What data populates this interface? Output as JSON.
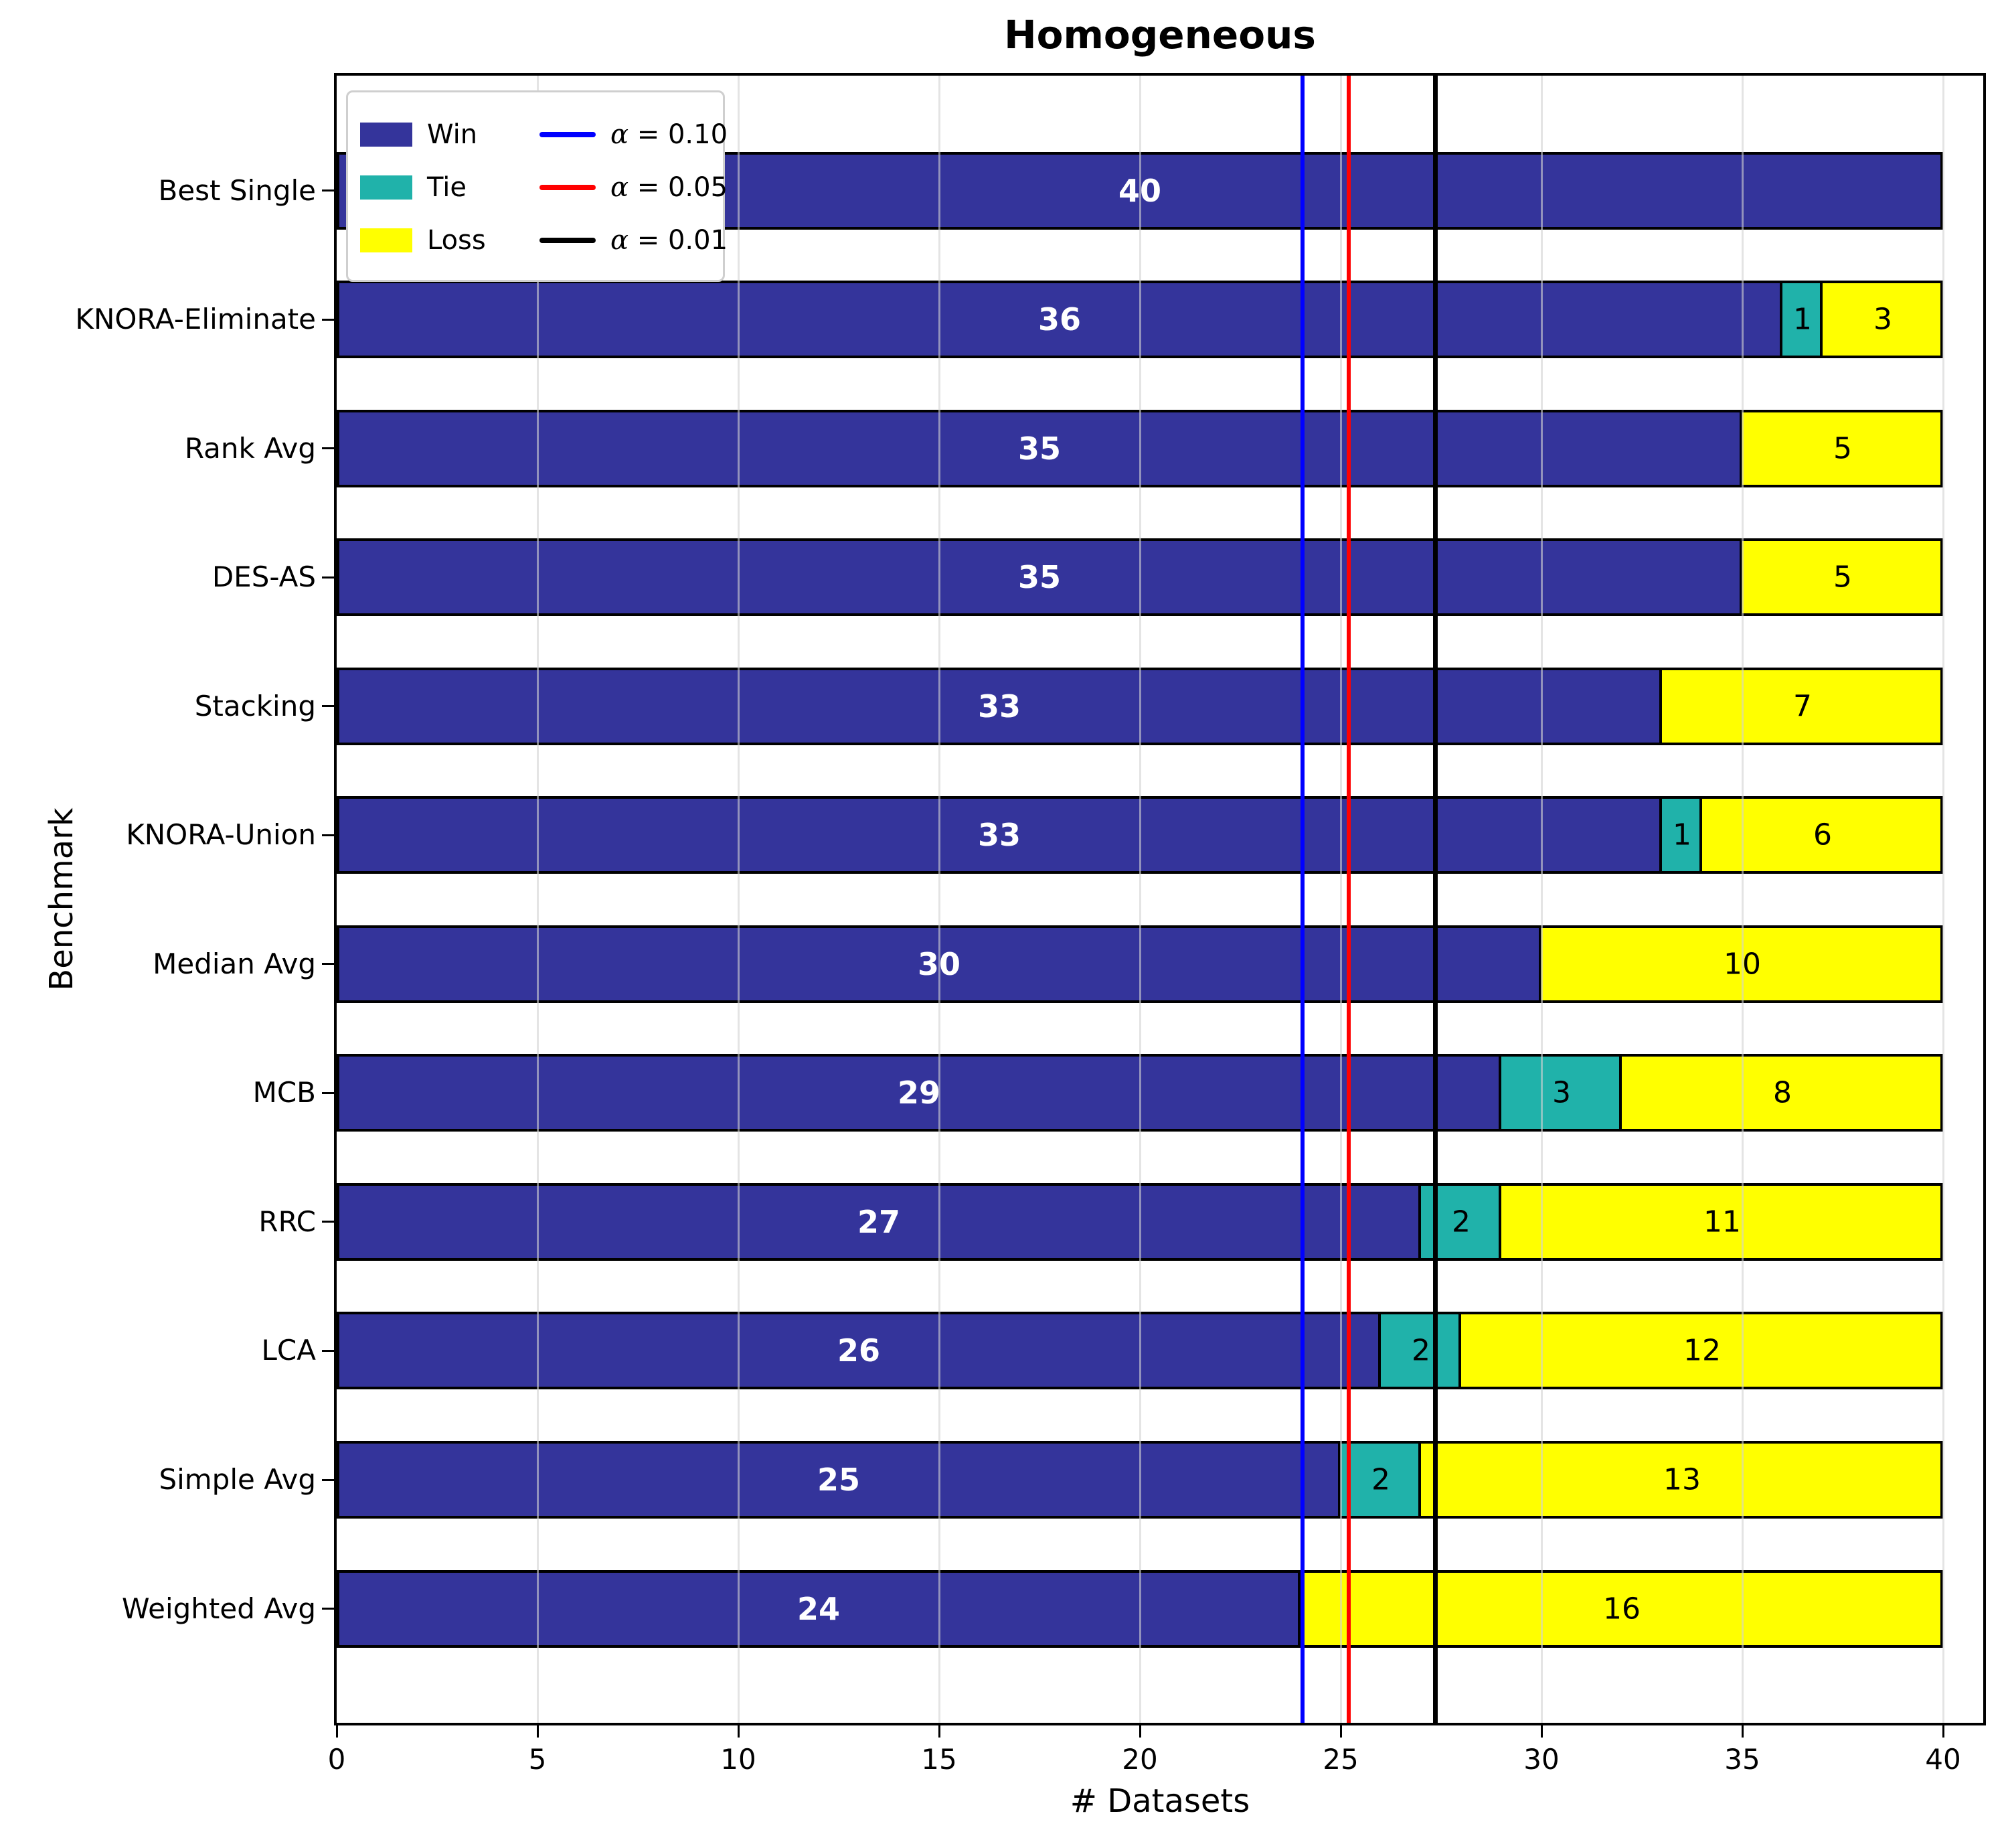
{
  "title": "Homogeneous",
  "axes": {
    "xlabel": "# Datasets",
    "ylabel": "Benchmark"
  },
  "chart_data": {
    "type": "bar",
    "orientation": "horizontal_stacked",
    "title": "Homogeneous",
    "xlabel": "# Datasets",
    "ylabel": "Benchmark",
    "xlim": [
      0,
      41
    ],
    "xticks": [
      0,
      5,
      10,
      15,
      20,
      25,
      30,
      35,
      40
    ],
    "grid": "vertical major gridlines, light gray",
    "legend_position": "upper left",
    "categories": [
      "Best Single",
      "KNORA-Eliminate",
      "Rank Avg",
      "DES-AS",
      "Stacking",
      "KNORA-Union",
      "Median Avg",
      "MCB",
      "RRC",
      "LCA",
      "Simple Avg",
      "Weighted Avg"
    ],
    "series": [
      {
        "name": "Win",
        "color": "#34349B",
        "label_color": "#FFFFFF",
        "values": [
          40,
          36,
          35,
          35,
          33,
          33,
          30,
          29,
          27,
          26,
          25,
          24
        ]
      },
      {
        "name": "Tie",
        "color": "#20B2AA",
        "label_color": "#000000",
        "values": [
          0,
          1,
          0,
          0,
          0,
          1,
          0,
          3,
          2,
          2,
          2,
          0
        ]
      },
      {
        "name": "Loss",
        "color": "#FFFF00",
        "label_color": "#000000",
        "values": [
          0,
          3,
          5,
          5,
          7,
          6,
          10,
          8,
          11,
          12,
          13,
          16
        ]
      }
    ],
    "alpha_lines": [
      {
        "label": "α = 0.10",
        "value": 24.05,
        "color": "#0000FF",
        "width": 6
      },
      {
        "label": "α = 0.05",
        "value": 25.2,
        "color": "#FF0000",
        "width": 6
      },
      {
        "label": "α = 0.01",
        "value": 27.36,
        "color": "#000000",
        "width": 7
      }
    ],
    "bar_edge_color": "#000000"
  }
}
